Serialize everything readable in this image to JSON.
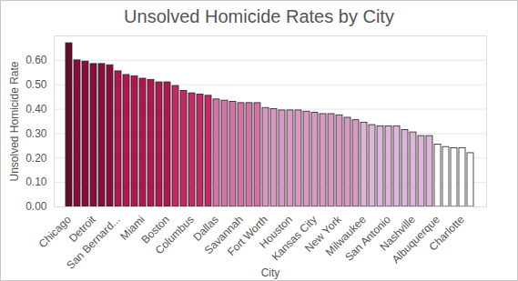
{
  "chart_data": {
    "type": "bar",
    "title": "Unsolved Homicide Rates by City",
    "x_label": "City",
    "y_label": "Unsolved Homicide Rate",
    "categories": [
      "Chicago",
      null,
      null,
      "Detroit",
      null,
      null,
      "San Bernard...",
      null,
      null,
      "Miami",
      null,
      null,
      "Boston",
      null,
      null,
      "Columbus",
      null,
      null,
      "Dallas",
      null,
      null,
      "Savannah",
      null,
      null,
      "Fort Worth",
      null,
      null,
      "Houston",
      null,
      null,
      "Kansas City",
      null,
      null,
      "New York",
      null,
      null,
      "Milwaukee",
      null,
      null,
      "San Antonio",
      null,
      null,
      "Nashville",
      null,
      null,
      "Albuquerque",
      null,
      null,
      "Charlotte",
      null
    ],
    "values": [
      0.67,
      0.6,
      0.595,
      0.585,
      0.585,
      0.58,
      0.555,
      0.54,
      0.535,
      0.525,
      0.52,
      0.51,
      0.51,
      0.495,
      0.475,
      0.465,
      0.46,
      0.455,
      0.44,
      0.435,
      0.43,
      0.425,
      0.425,
      0.425,
      0.405,
      0.4,
      0.395,
      0.395,
      0.395,
      0.39,
      0.385,
      0.38,
      0.38,
      0.375,
      0.365,
      0.355,
      0.345,
      0.335,
      0.33,
      0.33,
      0.33,
      0.315,
      0.305,
      0.29,
      0.29,
      0.255,
      0.245,
      0.24,
      0.24,
      0.22
    ],
    "colors": [
      "#6a0a26",
      "#8a0c3a",
      "#8a0c3a",
      "#8a0c3a",
      "#8a0c3a",
      "#8a0c3a",
      "#b3164f",
      "#b3164f",
      "#b3164f",
      "#b3164f",
      "#b3164f",
      "#b3164f",
      "#b3164f",
      "#c42a66",
      "#c42a66",
      "#c42a66",
      "#c42a66",
      "#c42a66",
      "#d274a6",
      "#d274a6",
      "#d274a6",
      "#d274a6",
      "#d274a6",
      "#d274a6",
      "#d898c2",
      "#d898c2",
      "#d898c2",
      "#d898c2",
      "#d898c2",
      "#d898c2",
      "#d898c2",
      "#d898c2",
      "#d898c2",
      "#d898c2",
      "#d898c2",
      "#d898c2",
      "#dcb6d8",
      "#dcb6d8",
      "#dcb6d8",
      "#dcb6d8",
      "#dcb6d8",
      "#dcb6d8",
      "#dcb6d8",
      "#dcb6d8",
      "#dcb6d8",
      "#ffffff",
      "#ffffff",
      "#ffffff",
      "#ffffff",
      "#ffffff"
    ],
    "ylim": [
      0,
      0.7
    ],
    "yticks": [
      0,
      0.1,
      0.2,
      0.3,
      0.4,
      0.5,
      0.6
    ],
    "grid": true
  }
}
